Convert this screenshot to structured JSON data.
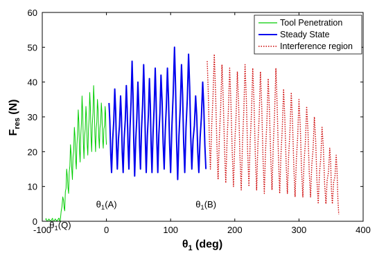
{
  "chart_data": {
    "type": "line",
    "xlabel": {
      "base": "θ",
      "sub": "1",
      "unit": " (deg)"
    },
    "ylabel": {
      "base": "F",
      "sub": "res",
      "unit": " (N)"
    },
    "xlim": [
      -100,
      400
    ],
    "ylim": [
      0,
      60
    ],
    "x_ticks": [
      "-100",
      "0",
      "100",
      "200",
      "300",
      "400"
    ],
    "x_tick_values": [
      -100,
      0,
      100,
      200,
      300,
      400
    ],
    "y_ticks": [
      "0",
      "10",
      "20",
      "30",
      "40",
      "50",
      "60"
    ],
    "y_tick_values": [
      0,
      10,
      20,
      30,
      40,
      50,
      60
    ],
    "grid": false,
    "legend_position": "top-right",
    "series": [
      {
        "name": "Tool Penetration",
        "color": "#00cc00",
        "style": "solid",
        "x_range": [
          -98,
          0
        ],
        "peaks": [
          {
            "x": -95,
            "y": 0.5
          },
          {
            "x": -85,
            "y": 0.6
          },
          {
            "x": -75,
            "y": 0.7
          },
          {
            "x": -68,
            "y": 7
          },
          {
            "x": -62,
            "y": 15
          },
          {
            "x": -56,
            "y": 22
          },
          {
            "x": -50,
            "y": 27
          },
          {
            "x": -44,
            "y": 32
          },
          {
            "x": -38,
            "y": 36
          },
          {
            "x": -32,
            "y": 33
          },
          {
            "x": -26,
            "y": 37
          },
          {
            "x": -20,
            "y": 39
          },
          {
            "x": -14,
            "y": 35
          },
          {
            "x": -8,
            "y": 34
          },
          {
            "x": -2,
            "y": 33
          }
        ],
        "troughs": [
          {
            "x": -92,
            "y": 0
          },
          {
            "x": -82,
            "y": 0
          },
          {
            "x": -72,
            "y": 0
          },
          {
            "x": -65,
            "y": 3
          },
          {
            "x": -59,
            "y": 8
          },
          {
            "x": -53,
            "y": 12
          },
          {
            "x": -47,
            "y": 15
          },
          {
            "x": -41,
            "y": 17
          },
          {
            "x": -35,
            "y": 18
          },
          {
            "x": -29,
            "y": 19
          },
          {
            "x": -23,
            "y": 20
          },
          {
            "x": -17,
            "y": 20
          },
          {
            "x": -11,
            "y": 21
          },
          {
            "x": -5,
            "y": 21
          },
          {
            "x": 0,
            "y": 22
          }
        ]
      },
      {
        "name": "Steady State",
        "color": "#0000ee",
        "style": "solid",
        "x_range": [
          0,
          155
        ],
        "peaks": [
          {
            "x": 4,
            "y": 34
          },
          {
            "x": 13,
            "y": 38
          },
          {
            "x": 22,
            "y": 36
          },
          {
            "x": 31,
            "y": 39
          },
          {
            "x": 40,
            "y": 46
          },
          {
            "x": 49,
            "y": 40
          },
          {
            "x": 58,
            "y": 45
          },
          {
            "x": 67,
            "y": 41
          },
          {
            "x": 76,
            "y": 44
          },
          {
            "x": 85,
            "y": 42
          },
          {
            "x": 95,
            "y": 44
          },
          {
            "x": 106,
            "y": 50
          },
          {
            "x": 117,
            "y": 45
          },
          {
            "x": 128,
            "y": 48
          },
          {
            "x": 139,
            "y": 36
          },
          {
            "x": 150,
            "y": 40
          }
        ],
        "troughs": [
          {
            "x": 8,
            "y": 14
          },
          {
            "x": 17,
            "y": 15
          },
          {
            "x": 26,
            "y": 14
          },
          {
            "x": 35,
            "y": 15
          },
          {
            "x": 44,
            "y": 13
          },
          {
            "x": 53,
            "y": 15
          },
          {
            "x": 62,
            "y": 14
          },
          {
            "x": 71,
            "y": 14
          },
          {
            "x": 80,
            "y": 14
          },
          {
            "x": 90,
            "y": 15
          },
          {
            "x": 100,
            "y": 14
          },
          {
            "x": 111,
            "y": 12
          },
          {
            "x": 122,
            "y": 14
          },
          {
            "x": 133,
            "y": 15
          },
          {
            "x": 144,
            "y": 14
          },
          {
            "x": 155,
            "y": 15
          }
        ]
      },
      {
        "name": "Interference region",
        "color": "#cc0000",
        "style": "dotted",
        "x_range": [
          155,
          362
        ],
        "peaks": [
          {
            "x": 157,
            "y": 46
          },
          {
            "x": 168,
            "y": 48
          },
          {
            "x": 180,
            "y": 45
          },
          {
            "x": 192,
            "y": 44
          },
          {
            "x": 204,
            "y": 43
          },
          {
            "x": 216,
            "y": 45
          },
          {
            "x": 228,
            "y": 44
          },
          {
            "x": 240,
            "y": 43
          },
          {
            "x": 252,
            "y": 41
          },
          {
            "x": 264,
            "y": 44
          },
          {
            "x": 276,
            "y": 38
          },
          {
            "x": 288,
            "y": 37
          },
          {
            "x": 300,
            "y": 35
          },
          {
            "x": 312,
            "y": 33
          },
          {
            "x": 324,
            "y": 30
          },
          {
            "x": 336,
            "y": 27
          },
          {
            "x": 348,
            "y": 21
          },
          {
            "x": 358,
            "y": 19
          }
        ],
        "troughs": [
          {
            "x": 162,
            "y": 15
          },
          {
            "x": 174,
            "y": 12
          },
          {
            "x": 186,
            "y": 11
          },
          {
            "x": 198,
            "y": 10
          },
          {
            "x": 210,
            "y": 9
          },
          {
            "x": 222,
            "y": 10
          },
          {
            "x": 234,
            "y": 9
          },
          {
            "x": 246,
            "y": 8
          },
          {
            "x": 258,
            "y": 9
          },
          {
            "x": 270,
            "y": 8
          },
          {
            "x": 282,
            "y": 8
          },
          {
            "x": 294,
            "y": 7
          },
          {
            "x": 306,
            "y": 7
          },
          {
            "x": 318,
            "y": 7
          },
          {
            "x": 330,
            "y": 5
          },
          {
            "x": 342,
            "y": 5
          },
          {
            "x": 352,
            "y": 5
          },
          {
            "x": 362,
            "y": 2
          }
        ]
      }
    ],
    "annotations": [
      {
        "base": "θ",
        "sub": "1",
        "text": "(Q)",
        "x": -72,
        "y": -2
      },
      {
        "base": "θ",
        "sub": "1",
        "text": "(A)",
        "x": 0,
        "y": 4
      },
      {
        "base": "θ",
        "sub": "1",
        "text": "(B)",
        "x": 155,
        "y": 4
      }
    ]
  }
}
